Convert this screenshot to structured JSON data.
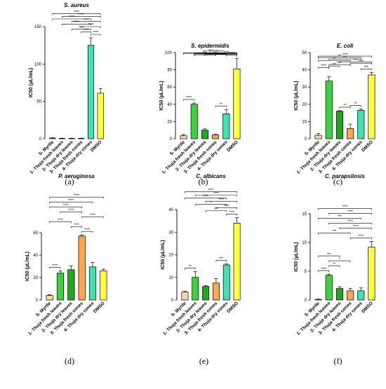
{
  "chart_data": [
    {
      "type": "bar",
      "panel": "(a)",
      "title": "S. aureus",
      "ylabel": "IC50 (µL/mL)",
      "ylim": [
        0,
        150
      ],
      "yticks": [
        0,
        50,
        100,
        150
      ],
      "categories": [
        "5- Myrtle",
        "1- Thuja fresh leaves",
        "2- Thuja dry leaves",
        "3- Thuja fresh cones",
        "4- Thuja dry cones",
        "DMSO"
      ],
      "values": [
        1,
        0.5,
        0.5,
        0.5,
        125,
        61
      ],
      "errors": [
        0.5,
        0.3,
        0.3,
        0.3,
        10,
        6
      ],
      "colors": [
        "#ffd6a5",
        "#3dd13d",
        "#1aaa1a",
        "#ffa450",
        "#40e0b0",
        "#ffff33"
      ],
      "significance": [
        {
          "from": 0,
          "to": 5,
          "label": "****"
        },
        {
          "from": 1,
          "to": 5,
          "label": "****"
        },
        {
          "from": 0,
          "to": 4,
          "label": "****"
        },
        {
          "from": 2,
          "to": 5,
          "label": "****"
        },
        {
          "from": 3,
          "to": 5,
          "label": "****"
        },
        {
          "from": 1,
          "to": 4,
          "label": "****"
        },
        {
          "from": 2,
          "to": 4,
          "label": "****"
        },
        {
          "from": 3,
          "to": 4,
          "label": "****"
        },
        {
          "from": 4,
          "to": 5,
          "label": "****"
        }
      ]
    },
    {
      "type": "bar",
      "panel": "(b)",
      "title": "S. epidermidis",
      "ylabel": "IC50 (µL/mL)",
      "ylim": [
        0,
        100
      ],
      "yticks": [
        0,
        20,
        40,
        60,
        80,
        100
      ],
      "categories": [
        "5- Myrtle",
        "1- Thuja fresh leaves",
        "2- Thuja dry leaves",
        "3- Thuja fresh cones",
        "4- Thuja dry cones",
        "DMSO"
      ],
      "values": [
        3.5,
        40,
        10,
        4.5,
        29,
        81
      ],
      "errors": [
        1.5,
        1.5,
        1.5,
        1,
        5,
        12
      ],
      "colors": [
        "#ffd6a5",
        "#3dd13d",
        "#1aaa1a",
        "#ffa450",
        "#40e0b0",
        "#ffff33"
      ],
      "significance": [
        {
          "from": 0,
          "to": 5,
          "label": "****"
        },
        {
          "from": 1,
          "to": 5,
          "label": "****"
        },
        {
          "from": 2,
          "to": 5,
          "label": "****"
        },
        {
          "from": 3,
          "to": 5,
          "label": "****"
        },
        {
          "from": 4,
          "to": 5,
          "label": "****"
        },
        {
          "from": 0,
          "to": 4,
          "label": "***"
        },
        {
          "from": 1,
          "to": 4,
          "label": "**"
        },
        {
          "from": 2,
          "to": 4,
          "label": "****"
        },
        {
          "from": 1,
          "to": 3,
          "label": "***"
        },
        {
          "from": 0,
          "to": 1,
          "label": "****"
        },
        {
          "from": 3,
          "to": 4,
          "label": "**"
        }
      ]
    },
    {
      "type": "bar",
      "panel": "(c)",
      "title": "E. coli",
      "ylabel": "IC50 (µL/mL)",
      "ylim": [
        0,
        50
      ],
      "yticks": [
        0,
        10,
        20,
        30,
        40,
        50
      ],
      "categories": [
        "5- Myrtle",
        "1- Thuja fresh leaves",
        "2- Thuja dry leaves",
        "3- Thuja fresh cones",
        "4- Thuja dry cones",
        "DMSO"
      ],
      "values": [
        2,
        33.5,
        16,
        6,
        16.5,
        37
      ],
      "errors": [
        1,
        2.5,
        0.3,
        2.5,
        0.8,
        1.5
      ],
      "colors": [
        "#ffd6a5",
        "#3dd13d",
        "#1aaa1a",
        "#ffa450",
        "#40e0b0",
        "#ffff33"
      ],
      "significance": [
        {
          "from": 0,
          "to": 5,
          "label": "****"
        },
        {
          "from": 0,
          "to": 4,
          "label": "**"
        },
        {
          "from": 1,
          "to": 4,
          "label": "***"
        },
        {
          "from": 0,
          "to": 3,
          "label": "**"
        },
        {
          "from": 2,
          "to": 5,
          "label": "***"
        },
        {
          "from": 1,
          "to": 2,
          "label": "***"
        },
        {
          "from": 3,
          "to": 5,
          "label": "****"
        },
        {
          "from": 0,
          "to": 1,
          "label": "****"
        },
        {
          "from": 1,
          "to": 3,
          "label": "****"
        },
        {
          "from": 4,
          "to": 5,
          "label": "***"
        },
        {
          "from": 3,
          "to": 4,
          "label": "**"
        },
        {
          "from": 2,
          "to": 3,
          "label": "**"
        }
      ]
    },
    {
      "type": "bar",
      "panel": "(d)",
      "title": "P. aeruginosa",
      "ylabel": "IC50 (µL/mL)",
      "ylim": [
        0,
        60
      ],
      "yticks": [
        0,
        20,
        40,
        60
      ],
      "categories": [
        "5- Myrtle",
        "1- Thuja fresh leaves",
        "2- Thuja dry leaves",
        "3- Thuja fresh cones",
        "4- Thuja dry cones",
        "DMSO"
      ],
      "values": [
        4,
        24,
        27,
        57,
        29.5,
        26
      ],
      "errors": [
        0.8,
        2,
        3.5,
        1,
        4,
        1.5
      ],
      "colors": [
        "#ffd6a5",
        "#3dd13d",
        "#1aaa1a",
        "#ffa450",
        "#40e0b0",
        "#ffff33"
      ],
      "significance": [
        {
          "from": 0,
          "to": 5,
          "label": "****"
        },
        {
          "from": 0,
          "to": 4,
          "label": "****"
        },
        {
          "from": 0,
          "to": 3,
          "label": "****"
        },
        {
          "from": 1,
          "to": 3,
          "label": "****"
        },
        {
          "from": 3,
          "to": 5,
          "label": "****"
        },
        {
          "from": 2,
          "to": 3,
          "label": "****"
        },
        {
          "from": 3,
          "to": 4,
          "label": "****"
        },
        {
          "from": 0,
          "to": 2,
          "label": "****"
        },
        {
          "from": 0,
          "to": 1,
          "label": "****"
        }
      ]
    },
    {
      "type": "bar",
      "panel": "(e)",
      "title": "C. albicans",
      "ylabel": "IC50 (µL/mL)",
      "ylim": [
        0,
        40
      ],
      "yticks": [
        0,
        10,
        20,
        30,
        40
      ],
      "categories": [
        "5- Myrtle",
        "1- Thuja fresh leaves",
        "2- Thuja dry leaves",
        "3- Thuja fresh cones",
        "4- Thuja dry cones",
        "DMSO"
      ],
      "values": [
        3.5,
        10,
        6,
        7.5,
        15.5,
        34
      ],
      "errors": [
        0.3,
        2.5,
        0.3,
        2,
        0.5,
        2.5
      ],
      "colors": [
        "#ffd6a5",
        "#3dd13d",
        "#1aaa1a",
        "#ffa450",
        "#40e0b0",
        "#ffff33"
      ],
      "significance": [
        {
          "from": 0,
          "to": 5,
          "label": "****"
        },
        {
          "from": 1,
          "to": 5,
          "label": "****"
        },
        {
          "from": 2,
          "to": 5,
          "label": "****"
        },
        {
          "from": 3,
          "to": 5,
          "label": "****"
        },
        {
          "from": 4,
          "to": 5,
          "label": "****"
        },
        {
          "from": 0,
          "to": 4,
          "label": "****"
        },
        {
          "from": 1,
          "to": 4,
          "label": "*"
        },
        {
          "from": 2,
          "to": 4,
          "label": "***"
        },
        {
          "from": 3,
          "to": 4,
          "label": "***"
        },
        {
          "from": 0,
          "to": 1,
          "label": "**"
        }
      ]
    },
    {
      "type": "bar",
      "panel": "(f)",
      "title": "C. parapsilosis",
      "ylabel": "IC50 (µL/mL)",
      "ylim": [
        0,
        15
      ],
      "yticks": [
        0,
        5,
        10,
        15
      ],
      "categories": [
        "5- Myrtle",
        "1- Thuja fresh leaves",
        "2- Thuja dry leaves",
        "3- Thuja fresh cones",
        "4- Thuja dry cones",
        "DMSO"
      ],
      "values": [
        0.1,
        4.3,
        2,
        1.6,
        1.6,
        9.2
      ],
      "errors": [
        0.05,
        0.2,
        0.3,
        0.4,
        0.5,
        1
      ],
      "colors": [
        "#ffd6a5",
        "#3dd13d",
        "#1aaa1a",
        "#ffa450",
        "#40e0b0",
        "#ffff33"
      ],
      "significance": [
        {
          "from": 0,
          "to": 5,
          "label": "****"
        },
        {
          "from": 1,
          "to": 5,
          "label": "****"
        },
        {
          "from": 2,
          "to": 5,
          "label": "****"
        },
        {
          "from": 3,
          "to": 5,
          "label": "****"
        },
        {
          "from": 0,
          "to": 4,
          "label": "***"
        },
        {
          "from": 0,
          "to": 3,
          "label": "***"
        },
        {
          "from": 0,
          "to": 2,
          "label": "***"
        },
        {
          "from": 1,
          "to": 5,
          "label": "****"
        },
        {
          "from": 1,
          "to": 3,
          "label": "*"
        },
        {
          "from": 1,
          "to": 2,
          "label": "**"
        },
        {
          "from": 0,
          "to": 1,
          "label": "****"
        }
      ]
    }
  ]
}
